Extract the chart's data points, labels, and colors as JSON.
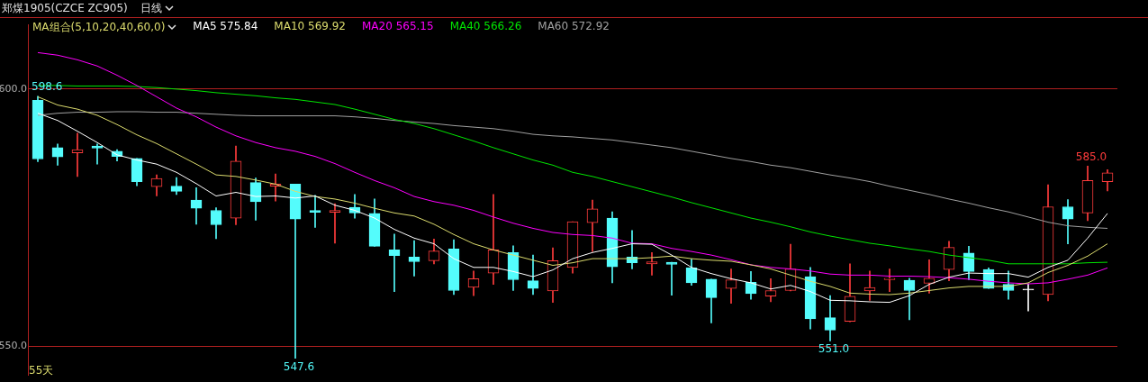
{
  "chart_data": {
    "type": "candlestick",
    "title": "郑煤1905(CZCE ZC905)",
    "subtitle": "日线",
    "legend_title": "MA组合(5,10,20,40,60,0)",
    "legend": "top left",
    "grid": "y",
    "tick_labels": "y",
    "marker": "none",
    "line_style": "solid",
    "ylim": [
      544.4,
      612.5
    ],
    "yticks": [
      {
        "value": 550,
        "label": "550.0"
      },
      {
        "value": 600,
        "label": "600.0"
      }
    ],
    "categories": [
      null,
      null,
      null,
      null,
      null,
      null,
      null,
      null,
      null,
      null,
      null,
      null,
      null,
      null,
      null,
      null,
      null,
      null,
      null,
      null,
      null,
      null,
      null,
      null,
      null,
      null,
      null,
      null,
      null,
      null,
      null,
      null,
      null,
      null,
      null,
      null,
      null,
      null,
      null,
      null,
      null,
      null,
      null,
      null,
      null,
      null,
      null,
      null,
      null,
      null,
      null,
      null,
      null,
      null,
      null
    ],
    "ohlc": [
      [
        597.8,
        598.6,
        585.9,
        586.4
      ],
      [
        588.6,
        589.3,
        585.2,
        586.8
      ],
      [
        587.6,
        591.4,
        583.0,
        588.2
      ],
      [
        588.9,
        589.3,
        585.4,
        588.5
      ],
      [
        587.9,
        588.2,
        586.0,
        586.9
      ],
      [
        586.5,
        586.5,
        581.2,
        582.0
      ],
      [
        581.0,
        583.3,
        579.2,
        582.6
      ],
      [
        581.1,
        582.8,
        579.5,
        580.1
      ],
      [
        578.4,
        580.8,
        573.7,
        576.8
      ],
      [
        576.4,
        576.9,
        570.9,
        573.6
      ],
      [
        574.9,
        588.9,
        573.6,
        586.0
      ],
      [
        581.8,
        582.7,
        574.5,
        578.1
      ],
      [
        581.1,
        583.5,
        578.2,
        581.5
      ],
      [
        581.5,
        581.5,
        547.6,
        574.7
      ],
      [
        576.4,
        579.3,
        573.1,
        576.0
      ],
      [
        576.0,
        577.7,
        570.0,
        576.4
      ],
      [
        577.0,
        579.5,
        574.9,
        575.9
      ],
      [
        575.8,
        578.6,
        569.4,
        569.4
      ],
      [
        568.7,
        571.8,
        560.6,
        567.6
      ],
      [
        567.3,
        570.5,
        563.6,
        566.4
      ],
      [
        566.6,
        570.8,
        566.0,
        568.5
      ],
      [
        568.9,
        570.7,
        560.0,
        560.8
      ],
      [
        561.4,
        564.6,
        559.8,
        563.1
      ],
      [
        564.2,
        579.5,
        562.0,
        568.7
      ],
      [
        568.2,
        569.5,
        560.8,
        562.9
      ],
      [
        562.7,
        567.7,
        560.0,
        561.2
      ],
      [
        560.7,
        569.1,
        558.5,
        566.6
      ],
      [
        565.3,
        574.2,
        564.2,
        574.2
      ],
      [
        574.0,
        578.4,
        568.4,
        576.7
      ],
      [
        574.9,
        576.1,
        562.3,
        565.4
      ],
      [
        567.3,
        572.5,
        565.0,
        566.2
      ],
      [
        566.0,
        568.2,
        563.8,
        566.4
      ],
      [
        566.3,
        566.3,
        559.9,
        565.9
      ],
      [
        565.2,
        566.9,
        561.8,
        562.3
      ],
      [
        563.0,
        563.0,
        554.5,
        559.4
      ],
      [
        561.2,
        565.0,
        558.3,
        562.9
      ],
      [
        562.4,
        564.5,
        559.1,
        560.2
      ],
      [
        559.7,
        563.1,
        558.6,
        560.8
      ],
      [
        560.8,
        569.8,
        560.7,
        565.0
      ],
      [
        563.5,
        565.3,
        553.3,
        555.3
      ],
      [
        555.5,
        559.8,
        551.0,
        553.1
      ],
      [
        554.8,
        566.0,
        554.7,
        559.7
      ],
      [
        560.7,
        564.6,
        558.9,
        561.4
      ],
      [
        562.9,
        565.0,
        560.6,
        563.2
      ],
      [
        562.8,
        563.2,
        555.1,
        560.8
      ],
      [
        562.2,
        566.8,
        560.3,
        563.2
      ],
      [
        564.9,
        570.4,
        562.7,
        569.2
      ],
      [
        568.1,
        569.4,
        562.9,
        564.5
      ],
      [
        564.9,
        565.2,
        561.2,
        561.2
      ],
      [
        562.0,
        564.6,
        559.1,
        560.8
      ],
      [
        560.9,
        562.1,
        556.8,
        560.9
      ],
      [
        560.0,
        581.4,
        558.8,
        577.1
      ],
      [
        577.1,
        578.5,
        569.9,
        574.7
      ],
      [
        575.9,
        585.0,
        574.4,
        582.2
      ],
      [
        582.0,
        584.3,
        580.2,
        583.7
      ]
    ],
    "colors": [
      "#54fcfc",
      "#54fcfc",
      "#ff3c3c",
      "#54fcfc",
      "#54fcfc",
      "#54fcfc",
      "#ff3c3c",
      "#54fcfc",
      "#54fcfc",
      "#54fcfc",
      "#ff3c3c",
      "#54fcfc",
      "#ff3c3c",
      "#54fcfc",
      "#54fcfc",
      "#ff3c3c",
      "#54fcfc",
      "#54fcfc",
      "#54fcfc",
      "#54fcfc",
      "#ff3c3c",
      "#54fcfc",
      "#ff3c3c",
      "#ff3c3c",
      "#54fcfc",
      "#54fcfc",
      "#ff3c3c",
      "#ff3c3c",
      "#ff3c3c",
      "#54fcfc",
      "#54fcfc",
      "#ff3c3c",
      "#54fcfc",
      "#54fcfc",
      "#54fcfc",
      "#ff3c3c",
      "#54fcfc",
      "#ff3c3c",
      "#ff3c3c",
      "#54fcfc",
      "#54fcfc",
      "#ff3c3c",
      "#ff3c3c",
      "#ff3c3c",
      "#54fcfc",
      "#ff3c3c",
      "#ff3c3c",
      "#54fcfc",
      "#54fcfc",
      "#54fcfc",
      "#ffffff",
      "#ff3c3c",
      "#54fcfc",
      "#ff3c3c",
      "#ff3c3c"
    ],
    "series": [
      {
        "type": "line",
        "name": "MA5 575.84",
        "color": "#ffffff",
        "values": [
          595.3,
          593.9,
          591.8,
          589.6,
          587.2,
          586.2,
          585.4,
          583.8,
          581.6,
          579.2,
          579.9,
          579.1,
          579.2,
          578.8,
          579.2,
          577.4,
          576.4,
          574.9,
          572.7,
          571.0,
          569.9,
          567.0,
          565.3,
          565.3,
          564.5,
          563.5,
          564.8,
          567.0,
          568.2,
          569.0,
          569.9,
          569.8,
          567.7,
          565.3,
          564.1,
          563.1,
          562.3,
          561.1,
          561.8,
          560.6,
          558.9,
          558.8,
          558.6,
          558.5,
          559.8,
          562.0,
          563.4,
          564.2,
          564.1,
          564.1,
          563.4,
          565.3,
          566.7,
          571.0,
          575.8
        ]
      },
      {
        "type": "line",
        "name": "MA10 569.92",
        "color": "#dcdc6e",
        "values": [
          598.5,
          596.9,
          596.1,
          594.9,
          593.1,
          591.1,
          589.4,
          587.4,
          585.4,
          583.3,
          583.0,
          582.3,
          581.5,
          580.1,
          579.1,
          578.6,
          577.8,
          576.8,
          575.9,
          575.3,
          573.7,
          571.7,
          569.9,
          568.7,
          567.7,
          566.7,
          565.7,
          566.2,
          567.0,
          567.0,
          567.0,
          567.2,
          567.5,
          567.0,
          566.7,
          566.5,
          565.8,
          565.0,
          563.8,
          562.6,
          561.6,
          560.3,
          560.1,
          560.0,
          560.3,
          560.8,
          561.3,
          561.6,
          561.6,
          561.6,
          562.3,
          564.3,
          565.7,
          567.5,
          569.9
        ]
      },
      {
        "type": "line",
        "name": "MA20 565.15",
        "color": "#ff00ff",
        "values": [
          607.1,
          606.6,
          605.7,
          604.5,
          602.7,
          600.7,
          598.5,
          596.3,
          594.6,
          592.6,
          590.9,
          589.6,
          588.6,
          587.9,
          586.9,
          585.5,
          583.8,
          582.2,
          580.8,
          579.1,
          578.1,
          577.4,
          576.4,
          575.1,
          573.9,
          572.9,
          572.1,
          571.7,
          571.5,
          571.0,
          570.0,
          569.9,
          569.0,
          568.4,
          567.7,
          566.8,
          565.8,
          565.3,
          565.0,
          564.6,
          564.0,
          563.8,
          563.8,
          563.6,
          563.6,
          563.5,
          563.3,
          563.0,
          562.6,
          562.3,
          562.1,
          562.3,
          563.0,
          563.8,
          565.2
        ]
      },
      {
        "type": "line",
        "name": "MA40 566.26",
        "color": "#00e600",
        "values": [
          600.7,
          600.7,
          600.6,
          600.6,
          600.6,
          600.5,
          600.3,
          600.0,
          599.7,
          599.3,
          599.0,
          598.7,
          598.3,
          598.0,
          597.5,
          597.0,
          596.1,
          595.1,
          594.1,
          593.3,
          592.3,
          591.1,
          589.9,
          588.6,
          587.4,
          586.2,
          585.2,
          583.8,
          583.0,
          582.0,
          581.0,
          580.0,
          579.0,
          577.9,
          576.9,
          575.9,
          574.9,
          574.1,
          573.2,
          572.2,
          571.4,
          570.7,
          570.0,
          569.5,
          568.9,
          568.4,
          567.7,
          567.2,
          566.7,
          566.0,
          566.0,
          566.0,
          566.0,
          566.2,
          566.3
        ]
      },
      {
        "type": "line",
        "name": "MA60 572.92",
        "color": "#a0a0a0",
        "values": [
          594.9,
          595.3,
          595.5,
          595.5,
          595.6,
          595.6,
          595.5,
          595.5,
          595.3,
          595.1,
          594.9,
          594.8,
          594.8,
          594.8,
          594.8,
          594.8,
          594.6,
          594.3,
          593.9,
          593.6,
          593.3,
          592.9,
          592.6,
          592.3,
          591.8,
          591.2,
          590.9,
          590.7,
          590.4,
          590.1,
          589.6,
          589.1,
          588.6,
          587.9,
          587.2,
          586.5,
          585.9,
          585.2,
          584.7,
          584.0,
          583.3,
          582.7,
          582.0,
          581.1,
          580.3,
          579.5,
          578.6,
          577.8,
          576.9,
          576.1,
          575.1,
          574.1,
          573.4,
          573.1,
          572.9
        ]
      }
    ],
    "annotations": [
      {
        "text": "598.6",
        "y": 598.6
      },
      {
        "text": "547.6",
        "y": 547.6
      },
      {
        "text": "551.0",
        "y": 551.0
      },
      {
        "text": "585.0",
        "y": 585.0
      },
      "55天"
    ]
  }
}
